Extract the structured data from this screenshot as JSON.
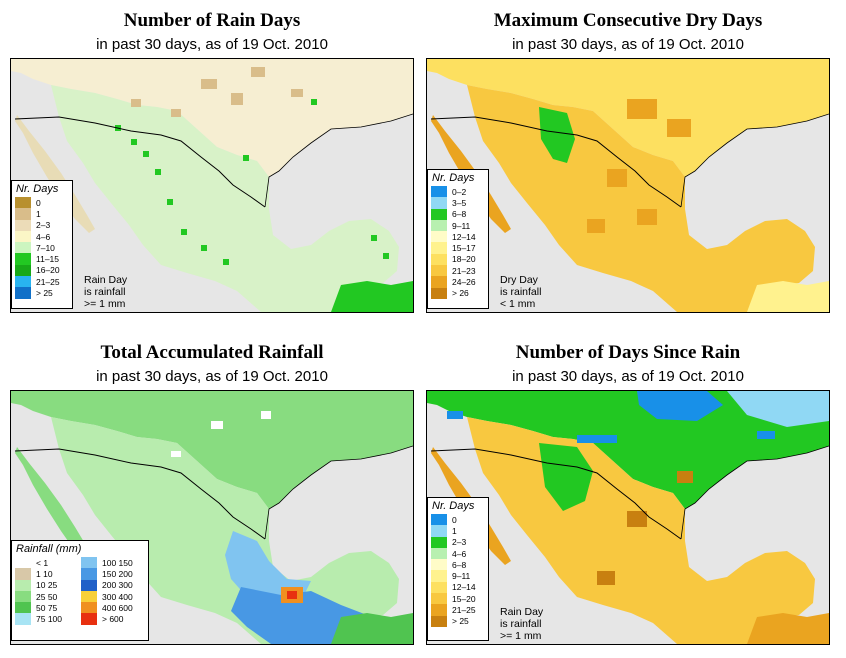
{
  "panels": [
    {
      "title": "Number of Rain Days",
      "subtitle": "in past 30 days, as of  19 Oct. 2010",
      "legend_title": "Nr. Days",
      "legend": [
        {
          "label": "0",
          "color": "#b8902e"
        },
        {
          "label": "1",
          "color": "#d9bd8a"
        },
        {
          "label": "2–3",
          "color": "#ecdcb8"
        },
        {
          "label": "4–6",
          "color": "#fbf6c6"
        },
        {
          "label": "7–10",
          "color": "#ccf5c0"
        },
        {
          "label": "11–15",
          "color": "#22c822"
        },
        {
          "label": "16–20",
          "color": "#18a818"
        },
        {
          "label": "21–25",
          "color": "#28b4f0"
        },
        {
          "label": "> 25",
          "color": "#1070c8"
        }
      ],
      "note": [
        "Rain Day",
        "is rainfall",
        ">= 1 mm"
      ]
    },
    {
      "title": "Maximum Consecutive Dry Days",
      "subtitle": "in past 30 days, as of  19 Oct. 2010",
      "legend_title": "Nr. Days",
      "legend": [
        {
          "label": "0–2",
          "color": "#1890e8"
        },
        {
          "label": "3–5",
          "color": "#90d8f4"
        },
        {
          "label": "6–8",
          "color": "#22c822"
        },
        {
          "label": "9–11",
          "color": "#b8f0b0"
        },
        {
          "label": "12–14",
          "color": "#fffcc8"
        },
        {
          "label": "15–17",
          "color": "#fff28e"
        },
        {
          "label": "18–20",
          "color": "#fde060"
        },
        {
          "label": "21–23",
          "color": "#f8c840"
        },
        {
          "label": "24–26",
          "color": "#eaa420"
        },
        {
          "label": "> 26",
          "color": "#c88010"
        }
      ],
      "note": [
        "Dry Day",
        "is rainfall",
        "< 1 mm"
      ]
    },
    {
      "title": "Total Accumulated Rainfall",
      "subtitle": "in past 30 days, as of  19 Oct. 2010",
      "legend_title": "Rainfall (mm)",
      "legend_left": [
        {
          "label": "< 1",
          "color": "#ffffff"
        },
        {
          "label": "1   10",
          "color": "#d8c8a8"
        },
        {
          "label": "10   25",
          "color": "#b8ecae"
        },
        {
          "label": "25   50",
          "color": "#88dc80"
        },
        {
          "label": "50   75",
          "color": "#50c450"
        },
        {
          "label": "75   100",
          "color": "#a8e4f4"
        }
      ],
      "legend_right": [
        {
          "label": "100   150",
          "color": "#80c4f0"
        },
        {
          "label": "150   200",
          "color": "#4898e4"
        },
        {
          "label": "200   300",
          "color": "#2060c8"
        },
        {
          "label": "300   400",
          "color": "#f8d038"
        },
        {
          "label": "400   600",
          "color": "#f09020"
        },
        {
          "label": "> 600",
          "color": "#e83010"
        }
      ]
    },
    {
      "title": "Number of Days Since Rain",
      "subtitle": "in past 30 days, as of  19 Oct. 2010",
      "legend_title": "Nr. Days",
      "legend": [
        {
          "label": "0",
          "color": "#1890e8"
        },
        {
          "label": "1",
          "color": "#90d8f4"
        },
        {
          "label": "2–3",
          "color": "#22c822"
        },
        {
          "label": "4–6",
          "color": "#b8f0b0"
        },
        {
          "label": "6–8",
          "color": "#fffcc8"
        },
        {
          "label": "9–11",
          "color": "#fff28e"
        },
        {
          "label": "12–14",
          "color": "#fde060"
        },
        {
          "label": "15–20",
          "color": "#f8c840"
        },
        {
          "label": "21–25",
          "color": "#eaa420"
        },
        {
          "label": "> 25",
          "color": "#c88010"
        }
      ],
      "note": [
        "Rain Day",
        "is rainfall",
        ">= 1 mm"
      ]
    }
  ]
}
